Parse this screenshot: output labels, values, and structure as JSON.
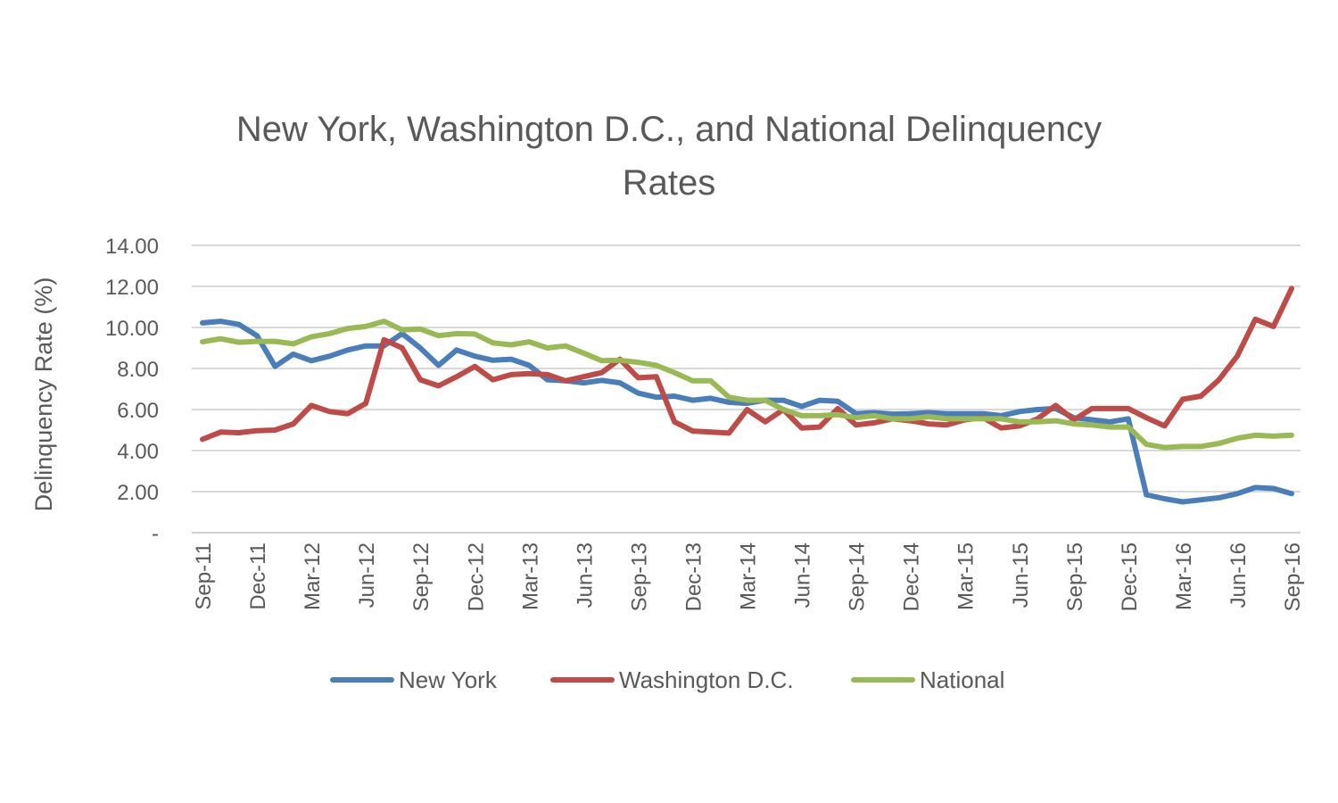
{
  "chart_data": {
    "type": "line",
    "title_line1": "New York, Washington D.C., and National Delinquency",
    "title_line2": "Rates",
    "ylabel": "Delinquency Rate (%)",
    "xlabel": "",
    "ylim": [
      0,
      14
    ],
    "yticks": [
      "-",
      "2.00",
      "4.00",
      "6.00",
      "8.00",
      "10.00",
      "12.00",
      "14.00"
    ],
    "grid": true,
    "legend_position": "bottom",
    "x_tick_labels": [
      "Sep-11",
      "Dec-11",
      "Mar-12",
      "Jun-12",
      "Sep-12",
      "Dec-12",
      "Mar-13",
      "Jun-13",
      "Sep-13",
      "Dec-13",
      "Mar-14",
      "Jun-14",
      "Sep-14",
      "Dec-14",
      "Mar-15",
      "Jun-15",
      "Sep-15",
      "Dec-15",
      "Mar-16",
      "Jun-16",
      "Sep-16"
    ],
    "x_months": [
      "Sep-11",
      "Oct-11",
      "Nov-11",
      "Dec-11",
      "Jan-12",
      "Feb-12",
      "Mar-12",
      "Apr-12",
      "May-12",
      "Jun-12",
      "Jul-12",
      "Aug-12",
      "Sep-12",
      "Oct-12",
      "Nov-12",
      "Dec-12",
      "Jan-13",
      "Feb-13",
      "Mar-13",
      "Apr-13",
      "May-13",
      "Jun-13",
      "Jul-13",
      "Aug-13",
      "Sep-13",
      "Oct-13",
      "Nov-13",
      "Dec-13",
      "Jan-14",
      "Feb-14",
      "Mar-14",
      "Apr-14",
      "May-14",
      "Jun-14",
      "Jul-14",
      "Aug-14",
      "Sep-14",
      "Oct-14",
      "Nov-14",
      "Dec-14",
      "Jan-15",
      "Feb-15",
      "Mar-15",
      "Apr-15",
      "May-15",
      "Jun-15",
      "Jul-15",
      "Aug-15",
      "Sep-15",
      "Oct-15",
      "Nov-15",
      "Dec-15",
      "Jan-16",
      "Feb-16",
      "Mar-16",
      "Apr-16",
      "May-16",
      "Jun-16",
      "Jul-16",
      "Aug-16",
      "Sep-16"
    ],
    "series": [
      {
        "name": "New York",
        "color": "#4a7ebb",
        "values": [
          10.22,
          10.3,
          10.15,
          9.6,
          8.1,
          8.7,
          8.38,
          8.6,
          8.9,
          9.1,
          9.1,
          9.7,
          9.0,
          8.15,
          8.9,
          8.6,
          8.4,
          8.45,
          8.15,
          7.45,
          7.4,
          7.3,
          7.42,
          7.3,
          6.8,
          6.6,
          6.65,
          6.45,
          6.55,
          6.35,
          6.3,
          6.45,
          6.45,
          6.15,
          6.45,
          6.4,
          5.8,
          5.85,
          5.78,
          5.8,
          5.85,
          5.8,
          5.8,
          5.8,
          5.7,
          5.9,
          6.0,
          6.05,
          5.6,
          5.5,
          5.4,
          5.55,
          1.85,
          1.65,
          1.5,
          1.6,
          1.7,
          1.9,
          2.2,
          2.15,
          1.9
        ]
      },
      {
        "name": "Washington D.C.",
        "color": "#be4b48",
        "values": [
          4.55,
          4.9,
          4.87,
          4.97,
          5.0,
          5.3,
          6.2,
          5.9,
          5.8,
          6.3,
          9.4,
          9.0,
          7.45,
          7.15,
          7.6,
          8.1,
          7.45,
          7.7,
          7.75,
          7.7,
          7.4,
          7.6,
          7.8,
          8.45,
          7.55,
          7.6,
          5.4,
          4.95,
          4.9,
          4.85,
          6.0,
          5.4,
          6.0,
          5.1,
          5.15,
          6.05,
          5.25,
          5.35,
          5.55,
          5.45,
          5.3,
          5.25,
          5.5,
          5.6,
          5.1,
          5.2,
          5.55,
          6.2,
          5.5,
          6.05,
          6.05,
          6.05,
          5.6,
          5.2,
          6.5,
          6.65,
          7.45,
          8.6,
          10.4,
          10.05,
          11.9
        ]
      },
      {
        "name": "National",
        "color": "#98b954",
        "values": [
          9.3,
          9.45,
          9.28,
          9.32,
          9.32,
          9.2,
          9.55,
          9.7,
          9.95,
          10.05,
          10.3,
          9.88,
          9.92,
          9.6,
          9.7,
          9.68,
          9.25,
          9.15,
          9.3,
          9.0,
          9.1,
          8.75,
          8.38,
          8.4,
          8.3,
          8.15,
          7.8,
          7.4,
          7.4,
          6.6,
          6.45,
          6.45,
          6.0,
          5.7,
          5.7,
          5.75,
          5.6,
          5.7,
          5.55,
          5.55,
          5.65,
          5.55,
          5.55,
          5.55,
          5.55,
          5.4,
          5.4,
          5.45,
          5.3,
          5.25,
          5.15,
          5.15,
          4.3,
          4.15,
          4.2,
          4.2,
          4.35,
          4.6,
          4.75,
          4.7,
          4.75
        ]
      }
    ]
  }
}
